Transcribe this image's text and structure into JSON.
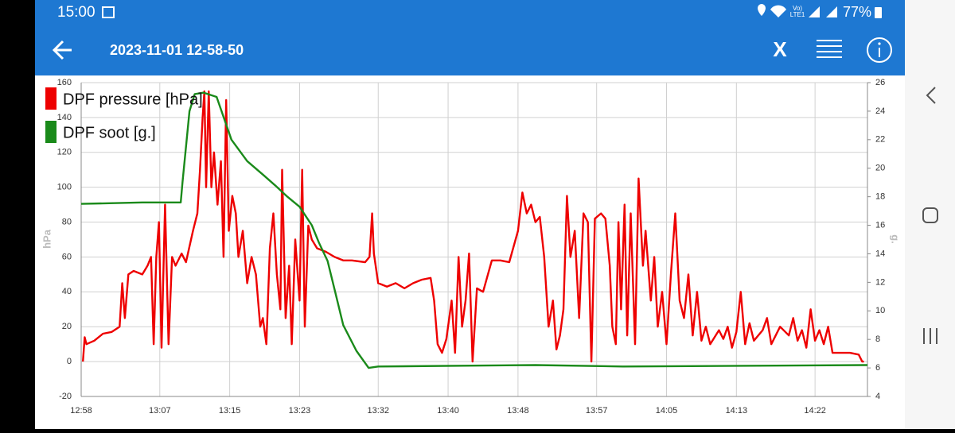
{
  "status_bar": {
    "time": "15:00",
    "net_labels": [
      "Vo)",
      "LTE1"
    ],
    "battery": "77%"
  },
  "app_bar": {
    "title": "2023-11-01 12-58-50",
    "close": "X"
  },
  "chart_data": {
    "type": "line",
    "ylabel": "hPa",
    "y2label": "g.",
    "grid": true,
    "legend": "top-left",
    "xlim": [
      778,
      868
    ],
    "xticks": [
      {
        "value": 778,
        "label": "12:58"
      },
      {
        "value": 787,
        "label": "13:07"
      },
      {
        "value": 795,
        "label": "13:15"
      },
      {
        "value": 803,
        "label": "13:23"
      },
      {
        "value": 812,
        "label": "13:32"
      },
      {
        "value": 820,
        "label": "13:40"
      },
      {
        "value": 828,
        "label": "13:48"
      },
      {
        "value": 837,
        "label": "13:57"
      },
      {
        "value": 845,
        "label": "14:05"
      },
      {
        "value": 853,
        "label": "14:13"
      },
      {
        "value": 862,
        "label": "14:22"
      }
    ],
    "ylim": [
      -20,
      160
    ],
    "yticks": [
      -20,
      0,
      20,
      40,
      60,
      80,
      100,
      120,
      140,
      160
    ],
    "y2lim": [
      4,
      26
    ],
    "y2ticks": [
      4,
      6,
      8,
      10,
      12,
      14,
      16,
      18,
      20,
      22,
      24,
      26
    ],
    "series": [
      {
        "name": "DPF pressure [hPa]",
        "color": "#ee0000",
        "axis": "y",
        "x": [
          778.2,
          778.4,
          778.6,
          779.5,
          780.5,
          781.5,
          782.4,
          782.7,
          783,
          783.4,
          784,
          785,
          785.6,
          786,
          786.3,
          786.6,
          786.9,
          787.2,
          787.6,
          788,
          788.4,
          788.8,
          789.5,
          790,
          790.8,
          791.3,
          791.6,
          791.9,
          792.1,
          792.3,
          792.6,
          792.9,
          793.2,
          793.6,
          794,
          794.3,
          794.6,
          794.9,
          795.3,
          795.7,
          796,
          796.5,
          797,
          797.5,
          798,
          798.5,
          798.8,
          799.2,
          799.6,
          800,
          800.4,
          800.8,
          801,
          801.4,
          801.8,
          802.1,
          802.5,
          803,
          803.3,
          803.6,
          804,
          804.4,
          805,
          806,
          807,
          808,
          809,
          810.5,
          811,
          811.3,
          811.5,
          812,
          813,
          814,
          815,
          816,
          817,
          818,
          818.4,
          818.8,
          819.3,
          819.8,
          820.4,
          820.8,
          821.2,
          821.6,
          822,
          822.4,
          822.8,
          823.3,
          824,
          825,
          826,
          827,
          828,
          828.5,
          829,
          829.5,
          830,
          830.5,
          831,
          831.5,
          832,
          832.4,
          832.8,
          833.2,
          833.6,
          834,
          834.5,
          835,
          835.5,
          836,
          836.4,
          836.8,
          837.5,
          838,
          838.5,
          838.8,
          839.2,
          839.5,
          839.8,
          840.2,
          840.5,
          840.9,
          841.4,
          841.8,
          842.3,
          842.6,
          843.2,
          843.6,
          844,
          844.5,
          845,
          845.5,
          846,
          846.5,
          847,
          847.5,
          848,
          848.5,
          849,
          849.5,
          850,
          851,
          851.5,
          852,
          852.5,
          853,
          853.5,
          854,
          854.5,
          855,
          856,
          856.5,
          857,
          858,
          859,
          859.5,
          860,
          860.5,
          861,
          861.5,
          862,
          862.5,
          863,
          863.5,
          864,
          865,
          866,
          867,
          867.4,
          867.6
        ],
        "values": [
          0,
          14,
          10,
          12,
          16,
          17,
          20,
          45,
          25,
          50,
          52,
          50,
          55,
          60,
          10,
          60,
          80,
          8,
          90,
          10,
          60,
          55,
          62,
          57,
          75,
          85,
          110,
          140,
          155,
          100,
          155,
          100,
          120,
          90,
          115,
          60,
          150,
          75,
          95,
          85,
          60,
          75,
          45,
          60,
          50,
          20,
          25,
          10,
          65,
          85,
          50,
          30,
          110,
          25,
          55,
          10,
          70,
          35,
          110,
          20,
          78,
          70,
          65,
          63,
          60,
          58,
          58,
          57,
          60,
          85,
          62,
          45,
          43,
          45,
          42,
          45,
          47,
          48,
          35,
          10,
          5,
          13,
          35,
          5,
          60,
          20,
          35,
          62,
          0,
          42,
          40,
          58,
          58,
          57,
          75,
          97,
          85,
          90,
          80,
          83,
          60,
          20,
          35,
          7,
          15,
          30,
          95,
          60,
          75,
          25,
          85,
          80,
          0,
          82,
          85,
          82,
          55,
          20,
          10,
          80,
          30,
          90,
          15,
          85,
          10,
          105,
          55,
          75,
          35,
          60,
          20,
          40,
          10,
          50,
          85,
          35,
          25,
          50,
          15,
          40,
          12,
          20,
          10,
          18,
          13,
          20,
          8,
          17,
          40,
          10,
          22,
          12,
          18,
          25,
          10,
          20,
          15,
          25,
          12,
          18,
          8,
          30,
          12,
          18,
          10,
          20,
          5,
          5,
          5,
          4,
          0,
          0
        ]
      },
      {
        "name": "DPF soot [g.]",
        "color": "#1a8a1a",
        "axis": "y2",
        "x": [
          778,
          785,
          789.4,
          789.6,
          790.4,
          791,
          792,
          793.5,
          795.2,
          797,
          798.9,
          800.2,
          801.6,
          803,
          804.4,
          805.2,
          806.2,
          807,
          808,
          809.5,
          810.9,
          812,
          830,
          840,
          868
        ],
        "values": [
          17.5,
          17.6,
          17.6,
          19,
          24,
          25.2,
          25.3,
          25,
          22,
          20.5,
          19.5,
          18.8,
          18,
          17.3,
          16,
          14.8,
          13.5,
          11.5,
          9,
          7.2,
          6,
          6.1,
          6.2,
          6.1,
          6.2
        ]
      }
    ]
  }
}
